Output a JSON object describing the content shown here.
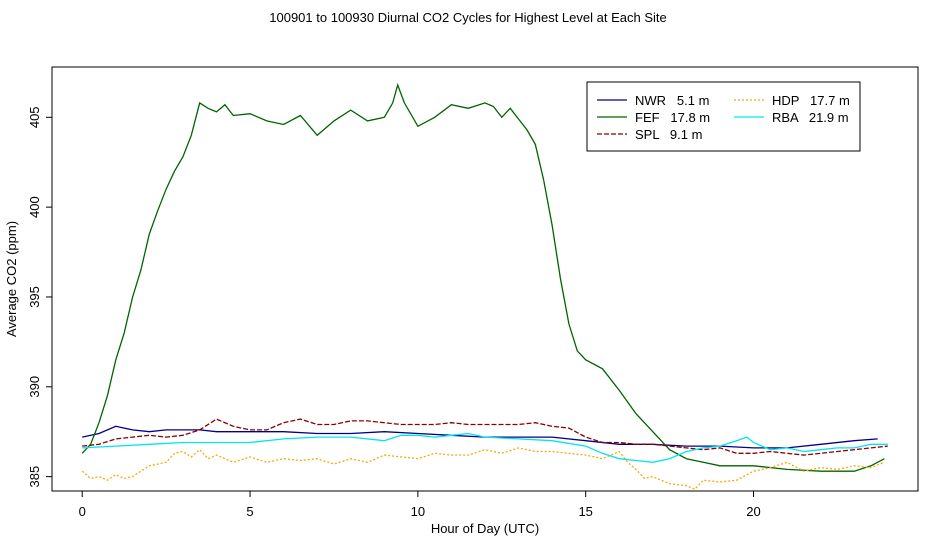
{
  "chart_data": {
    "type": "line",
    "title": "100901  to  100930 Diurnal CO2 Cycles for Highest Level at Each Site",
    "xlabel": "Hour of Day (UTC)",
    "ylabel": "Average CO2 (ppm)",
    "xlim": [
      -0.9,
      24.9
    ],
    "ylim": [
      384.2,
      407.8
    ],
    "x_ticks": [
      0,
      5,
      10,
      15,
      20
    ],
    "y_ticks": [
      385,
      390,
      395,
      400,
      405
    ],
    "grid": false,
    "legend_position": "top-right",
    "series": [
      {
        "name": "NWR",
        "label": "NWR   5.1 m",
        "color": "#00008b",
        "dash": "solid",
        "points": [
          [
            0,
            387.2
          ],
          [
            0.5,
            387.4
          ],
          [
            1,
            387.8
          ],
          [
            1.5,
            387.6
          ],
          [
            2,
            387.5
          ],
          [
            2.5,
            387.6
          ],
          [
            3,
            387.6
          ],
          [
            3.5,
            387.6
          ],
          [
            4,
            387.5
          ],
          [
            5,
            387.5
          ],
          [
            6,
            387.5
          ],
          [
            7,
            387.4
          ],
          [
            8,
            387.4
          ],
          [
            9,
            387.5
          ],
          [
            10,
            387.4
          ],
          [
            11,
            387.3
          ],
          [
            12,
            387.2
          ],
          [
            13,
            387.2
          ],
          [
            14,
            387.2
          ],
          [
            15,
            387.0
          ],
          [
            16,
            386.8
          ],
          [
            17,
            386.8
          ],
          [
            18,
            386.7
          ],
          [
            19,
            386.7
          ],
          [
            20,
            386.6
          ],
          [
            21,
            386.6
          ],
          [
            22,
            386.8
          ],
          [
            23,
            387.0
          ],
          [
            23.7,
            387.1
          ]
        ]
      },
      {
        "name": "FEF",
        "label": "FEF   17.8 m",
        "color": "#006400",
        "dash": "solid",
        "points": [
          [
            0,
            386.3
          ],
          [
            0.25,
            386.8
          ],
          [
            0.5,
            388.0
          ],
          [
            0.75,
            389.5
          ],
          [
            1,
            391.5
          ],
          [
            1.25,
            393.0
          ],
          [
            1.5,
            395.0
          ],
          [
            1.75,
            396.5
          ],
          [
            2,
            398.5
          ],
          [
            2.25,
            399.8
          ],
          [
            2.5,
            401.0
          ],
          [
            2.75,
            402.0
          ],
          [
            3,
            402.8
          ],
          [
            3.25,
            404.0
          ],
          [
            3.5,
            405.8
          ],
          [
            3.75,
            405.5
          ],
          [
            4,
            405.3
          ],
          [
            4.25,
            405.7
          ],
          [
            4.5,
            405.1
          ],
          [
            5,
            405.2
          ],
          [
            5.5,
            404.8
          ],
          [
            6,
            404.6
          ],
          [
            6.5,
            405.1
          ],
          [
            7,
            404.0
          ],
          [
            7.5,
            404.8
          ],
          [
            8,
            405.4
          ],
          [
            8.5,
            404.8
          ],
          [
            9,
            405.0
          ],
          [
            9.25,
            405.8
          ],
          [
            9.4,
            406.8
          ],
          [
            9.6,
            405.8
          ],
          [
            10,
            404.5
          ],
          [
            10.5,
            405.0
          ],
          [
            11,
            405.7
          ],
          [
            11.5,
            405.5
          ],
          [
            12,
            405.8
          ],
          [
            12.25,
            405.6
          ],
          [
            12.5,
            405.0
          ],
          [
            12.75,
            405.5
          ],
          [
            13,
            404.9
          ],
          [
            13.25,
            404.3
          ],
          [
            13.5,
            403.5
          ],
          [
            13.75,
            401.5
          ],
          [
            14,
            399.0
          ],
          [
            14.25,
            396.0
          ],
          [
            14.5,
            393.5
          ],
          [
            14.75,
            392.0
          ],
          [
            15,
            391.5
          ],
          [
            15.5,
            391.0
          ],
          [
            16,
            389.8
          ],
          [
            16.5,
            388.5
          ],
          [
            17,
            387.5
          ],
          [
            17.5,
            386.5
          ],
          [
            18,
            386.0
          ],
          [
            18.5,
            385.8
          ],
          [
            19,
            385.6
          ],
          [
            20,
            385.6
          ],
          [
            21,
            385.4
          ],
          [
            22,
            385.3
          ],
          [
            23,
            385.3
          ],
          [
            23.5,
            385.6
          ],
          [
            23.9,
            386.0
          ]
        ]
      },
      {
        "name": "SPL",
        "label": "SPL   9.1 m",
        "color": "#8b0000",
        "dash": "dashed",
        "points": [
          [
            0,
            386.7
          ],
          [
            0.5,
            386.8
          ],
          [
            1,
            387.1
          ],
          [
            1.5,
            387.2
          ],
          [
            2,
            387.3
          ],
          [
            2.5,
            387.2
          ],
          [
            3,
            387.3
          ],
          [
            3.5,
            387.6
          ],
          [
            4,
            388.2
          ],
          [
            4.5,
            387.8
          ],
          [
            5,
            387.6
          ],
          [
            5.5,
            387.6
          ],
          [
            6,
            388.0
          ],
          [
            6.5,
            388.2
          ],
          [
            7,
            387.9
          ],
          [
            7.5,
            387.9
          ],
          [
            8,
            388.1
          ],
          [
            8.5,
            388.1
          ],
          [
            9,
            388.0
          ],
          [
            9.5,
            387.9
          ],
          [
            10,
            387.9
          ],
          [
            10.5,
            387.9
          ],
          [
            11,
            388.0
          ],
          [
            11.5,
            387.9
          ],
          [
            12,
            387.9
          ],
          [
            12.5,
            387.9
          ],
          [
            13,
            387.9
          ],
          [
            13.5,
            388.0
          ],
          [
            14,
            387.8
          ],
          [
            14.5,
            387.7
          ],
          [
            15,
            387.2
          ],
          [
            15.5,
            386.9
          ],
          [
            16,
            386.9
          ],
          [
            16.5,
            386.8
          ],
          [
            17,
            386.8
          ],
          [
            17.5,
            386.7
          ],
          [
            18,
            386.6
          ],
          [
            18.5,
            386.5
          ],
          [
            19,
            386.6
          ],
          [
            19.5,
            386.3
          ],
          [
            20,
            386.3
          ],
          [
            20.5,
            386.4
          ],
          [
            21,
            386.3
          ],
          [
            21.5,
            386.2
          ],
          [
            22,
            386.3
          ],
          [
            22.5,
            386.4
          ],
          [
            23,
            386.5
          ],
          [
            23.5,
            386.6
          ],
          [
            24,
            386.7
          ]
        ]
      },
      {
        "name": "HDP",
        "label": "HDP   17.7 m",
        "color": "#ffa500",
        "dash": "dotted",
        "points": [
          [
            0,
            385.3
          ],
          [
            0.25,
            384.9
          ],
          [
            0.5,
            385.0
          ],
          [
            0.75,
            384.8
          ],
          [
            1,
            385.1
          ],
          [
            1.25,
            384.9
          ],
          [
            1.5,
            385.0
          ],
          [
            1.75,
            385.3
          ],
          [
            2,
            385.6
          ],
          [
            2.25,
            385.7
          ],
          [
            2.5,
            385.8
          ],
          [
            2.75,
            386.3
          ],
          [
            3,
            386.4
          ],
          [
            3.25,
            386.1
          ],
          [
            3.5,
            386.5
          ],
          [
            3.75,
            386.0
          ],
          [
            4,
            386.2
          ],
          [
            4.5,
            385.8
          ],
          [
            5,
            386.1
          ],
          [
            5.5,
            385.8
          ],
          [
            6,
            386.0
          ],
          [
            6.5,
            385.9
          ],
          [
            7,
            386.0
          ],
          [
            7.5,
            385.7
          ],
          [
            8,
            386.0
          ],
          [
            8.5,
            385.8
          ],
          [
            9,
            386.2
          ],
          [
            9.5,
            386.1
          ],
          [
            10,
            386.0
          ],
          [
            10.5,
            386.3
          ],
          [
            11,
            386.2
          ],
          [
            11.5,
            386.2
          ],
          [
            12,
            386.5
          ],
          [
            12.5,
            386.3
          ],
          [
            13,
            386.6
          ],
          [
            13.5,
            386.4
          ],
          [
            14,
            386.4
          ],
          [
            14.5,
            386.3
          ],
          [
            15,
            386.2
          ],
          [
            15.5,
            386.0
          ],
          [
            16,
            386.4
          ],
          [
            16.25,
            385.8
          ],
          [
            16.5,
            385.4
          ],
          [
            16.75,
            384.9
          ],
          [
            17,
            385.0
          ],
          [
            17.5,
            384.6
          ],
          [
            18,
            384.5
          ],
          [
            18.25,
            384.3
          ],
          [
            18.5,
            384.8
          ],
          [
            19,
            384.7
          ],
          [
            19.5,
            384.8
          ],
          [
            20,
            385.3
          ],
          [
            20.5,
            385.5
          ],
          [
            21,
            385.8
          ],
          [
            21.5,
            385.3
          ],
          [
            22,
            385.5
          ],
          [
            22.5,
            385.4
          ],
          [
            23,
            385.6
          ],
          [
            23.5,
            385.5
          ],
          [
            23.9,
            385.8
          ]
        ]
      },
      {
        "name": "RBA",
        "label": "RBA   21.9 m",
        "color": "#00e5ee",
        "dash": "solid",
        "points": [
          [
            0,
            386.6
          ],
          [
            1,
            386.7
          ],
          [
            2,
            386.8
          ],
          [
            3,
            386.9
          ],
          [
            4,
            386.9
          ],
          [
            5,
            386.9
          ],
          [
            6,
            387.1
          ],
          [
            7,
            387.2
          ],
          [
            8,
            387.2
          ],
          [
            9,
            387.0
          ],
          [
            9.5,
            387.3
          ],
          [
            10,
            387.3
          ],
          [
            10.5,
            387.2
          ],
          [
            11,
            387.3
          ],
          [
            11.5,
            387.4
          ],
          [
            12,
            387.2
          ],
          [
            13,
            387.1
          ],
          [
            14,
            387.0
          ],
          [
            15,
            386.7
          ],
          [
            15.5,
            386.3
          ],
          [
            16,
            386.0
          ],
          [
            16.5,
            385.9
          ],
          [
            17,
            385.8
          ],
          [
            17.5,
            386.0
          ],
          [
            18,
            386.4
          ],
          [
            18.5,
            386.6
          ],
          [
            19,
            386.7
          ],
          [
            19.5,
            387.0
          ],
          [
            19.8,
            387.2
          ],
          [
            20,
            386.9
          ],
          [
            20.5,
            386.5
          ],
          [
            21,
            386.6
          ],
          [
            21.5,
            386.4
          ],
          [
            22,
            386.5
          ],
          [
            22.5,
            386.6
          ],
          [
            23,
            386.6
          ],
          [
            23.5,
            386.8
          ],
          [
            24,
            386.8
          ]
        ]
      }
    ]
  }
}
